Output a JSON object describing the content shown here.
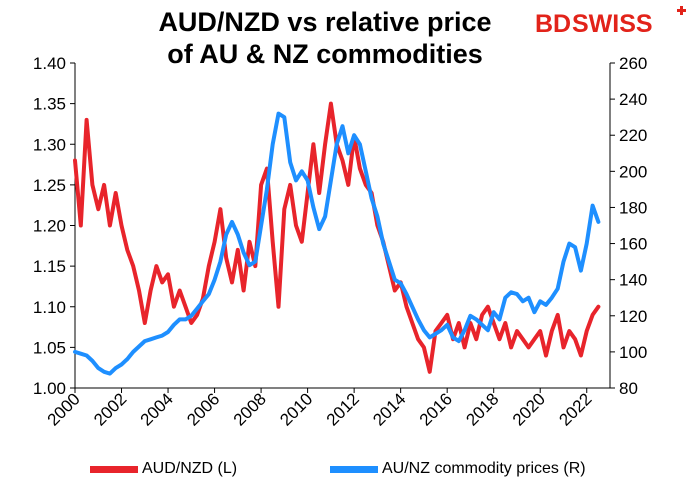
{
  "title_line1": "AUD/NZD vs relative price",
  "title_line2": "of AU & NZ commodities",
  "logo": {
    "bd": "BD",
    "swiss": "SWISS"
  },
  "colors": {
    "aud_nzd": "#e8242b",
    "commodity": "#1e8fff",
    "logo_red": "#e2231a"
  },
  "chart_data": {
    "type": "line",
    "title": "AUD/NZD vs relative price of AU & NZ commodities",
    "x_ticks": [
      "2000",
      "2002",
      "2004",
      "2006",
      "2008",
      "2010",
      "2012",
      "2014",
      "2016",
      "2018",
      "2020",
      "2022"
    ],
    "y_left": {
      "lim": [
        1.0,
        1.4
      ],
      "ticks": [
        "1.00",
        "1.05",
        "1.10",
        "1.15",
        "1.20",
        "1.25",
        "1.30",
        "1.35",
        "1.40"
      ]
    },
    "y_right": {
      "lim": [
        80,
        260
      ],
      "ticks": [
        "80",
        "100",
        "120",
        "140",
        "160",
        "180",
        "200",
        "220",
        "240",
        "260"
      ]
    },
    "legend_position": "bottom",
    "series": [
      {
        "name": "AUD/NZD (L)",
        "axis": "left",
        "x": [
          2000.0,
          2000.25,
          2000.5,
          2000.75,
          2001.0,
          2001.25,
          2001.5,
          2001.75,
          2002.0,
          2002.25,
          2002.5,
          2002.75,
          2003.0,
          2003.25,
          2003.5,
          2003.75,
          2004.0,
          2004.25,
          2004.5,
          2004.75,
          2005.0,
          2005.25,
          2005.5,
          2005.75,
          2006.0,
          2006.25,
          2006.5,
          2006.75,
          2007.0,
          2007.25,
          2007.5,
          2007.75,
          2008.0,
          2008.25,
          2008.5,
          2008.75,
          2009.0,
          2009.25,
          2009.5,
          2009.75,
          2010.0,
          2010.25,
          2010.5,
          2010.75,
          2011.0,
          2011.25,
          2011.5,
          2011.75,
          2012.0,
          2012.25,
          2012.5,
          2012.75,
          2013.0,
          2013.25,
          2013.5,
          2013.75,
          2014.0,
          2014.25,
          2014.5,
          2014.75,
          2015.0,
          2015.25,
          2015.5,
          2015.75,
          2016.0,
          2016.25,
          2016.5,
          2016.75,
          2017.0,
          2017.25,
          2017.5,
          2017.75,
          2018.0,
          2018.25,
          2018.5,
          2018.75,
          2019.0,
          2019.25,
          2019.5,
          2019.75,
          2020.0,
          2020.25,
          2020.5,
          2020.75,
          2021.0,
          2021.25,
          2021.5,
          2021.75,
          2022.0,
          2022.25,
          2022.5
        ],
        "values": [
          1.28,
          1.2,
          1.33,
          1.25,
          1.22,
          1.25,
          1.2,
          1.24,
          1.2,
          1.17,
          1.15,
          1.12,
          1.08,
          1.12,
          1.15,
          1.13,
          1.14,
          1.1,
          1.12,
          1.1,
          1.08,
          1.09,
          1.11,
          1.15,
          1.18,
          1.22,
          1.16,
          1.13,
          1.17,
          1.12,
          1.18,
          1.15,
          1.25,
          1.27,
          1.18,
          1.1,
          1.22,
          1.25,
          1.2,
          1.18,
          1.24,
          1.3,
          1.24,
          1.3,
          1.35,
          1.3,
          1.28,
          1.25,
          1.31,
          1.27,
          1.25,
          1.24,
          1.2,
          1.18,
          1.15,
          1.12,
          1.13,
          1.1,
          1.08,
          1.06,
          1.05,
          1.02,
          1.07,
          1.08,
          1.09,
          1.06,
          1.08,
          1.05,
          1.08,
          1.06,
          1.09,
          1.1,
          1.08,
          1.06,
          1.08,
          1.05,
          1.07,
          1.06,
          1.05,
          1.06,
          1.07,
          1.04,
          1.07,
          1.09,
          1.05,
          1.07,
          1.06,
          1.04,
          1.07,
          1.09,
          1.1
        ]
      },
      {
        "name": "AU/NZ commodity prices (R)",
        "axis": "right",
        "x": [
          2000.0,
          2000.25,
          2000.5,
          2000.75,
          2001.0,
          2001.25,
          2001.5,
          2001.75,
          2002.0,
          2002.25,
          2002.5,
          2002.75,
          2003.0,
          2003.25,
          2003.5,
          2003.75,
          2004.0,
          2004.25,
          2004.5,
          2004.75,
          2005.0,
          2005.25,
          2005.5,
          2005.75,
          2006.0,
          2006.25,
          2006.5,
          2006.75,
          2007.0,
          2007.25,
          2007.5,
          2007.75,
          2008.0,
          2008.25,
          2008.5,
          2008.75,
          2009.0,
          2009.25,
          2009.5,
          2009.75,
          2010.0,
          2010.25,
          2010.5,
          2010.75,
          2011.0,
          2011.25,
          2011.5,
          2011.75,
          2012.0,
          2012.25,
          2012.5,
          2012.75,
          2013.0,
          2013.25,
          2013.5,
          2013.75,
          2014.0,
          2014.25,
          2014.5,
          2014.75,
          2015.0,
          2015.25,
          2015.5,
          2015.75,
          2016.0,
          2016.25,
          2016.5,
          2016.75,
          2017.0,
          2017.25,
          2017.5,
          2017.75,
          2018.0,
          2018.25,
          2018.5,
          2018.75,
          2019.0,
          2019.25,
          2019.5,
          2019.75,
          2020.0,
          2020.25,
          2020.5,
          2020.75,
          2021.0,
          2021.25,
          2021.5,
          2021.75,
          2022.0,
          2022.25,
          2022.5
        ],
        "values": [
          100,
          99,
          98,
          95,
          91,
          89,
          88,
          91,
          93,
          96,
          100,
          103,
          106,
          107,
          108,
          109,
          111,
          115,
          118,
          118,
          120,
          124,
          128,
          132,
          140,
          150,
          165,
          172,
          165,
          155,
          148,
          150,
          170,
          190,
          215,
          232,
          230,
          205,
          195,
          200,
          195,
          180,
          168,
          175,
          195,
          215,
          225,
          210,
          220,
          215,
          200,
          185,
          175,
          160,
          150,
          140,
          138,
          132,
          125,
          118,
          112,
          108,
          110,
          112,
          115,
          108,
          106,
          112,
          120,
          118,
          115,
          112,
          122,
          118,
          130,
          133,
          132,
          128,
          130,
          122,
          128,
          126,
          130,
          135,
          150,
          160,
          158,
          145,
          160,
          181,
          172
        ]
      }
    ]
  }
}
